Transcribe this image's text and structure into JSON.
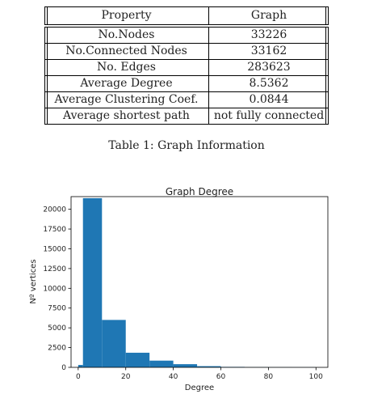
{
  "table": {
    "header": [
      "Property",
      "Graph"
    ],
    "rows": [
      [
        "No.Nodes",
        "33226"
      ],
      [
        "No.Connected Nodes",
        "33162"
      ],
      [
        "No. Edges",
        "283623"
      ],
      [
        "Average Degree",
        "8.5362"
      ],
      [
        "Average Clustering Coef.",
        "0.0844"
      ],
      [
        "Average shortest path",
        "not fully connected"
      ]
    ],
    "caption": "Table 1: Graph Information"
  },
  "chart_data": {
    "type": "bar",
    "title": "Graph Degree",
    "xlabel": "Degree",
    "ylabel": "Nº vertices",
    "xlim": [
      -3,
      105
    ],
    "ylim": [
      0,
      21600
    ],
    "xticks": [
      0,
      20,
      40,
      60,
      80,
      100
    ],
    "yticks": [
      0,
      2500,
      5000,
      7500,
      10000,
      12500,
      15000,
      17500,
      20000
    ],
    "color": "#1f77b4",
    "bins": [
      {
        "x0": 0,
        "x1": 2,
        "count": 300
      },
      {
        "x0": 2,
        "x1": 10,
        "count": 21400
      },
      {
        "x0": 10,
        "x1": 20,
        "count": 6000
      },
      {
        "x0": 20,
        "x1": 30,
        "count": 1850
      },
      {
        "x0": 30,
        "x1": 40,
        "count": 850
      },
      {
        "x0": 40,
        "x1": 50,
        "count": 400
      },
      {
        "x0": 50,
        "x1": 60,
        "count": 150
      },
      {
        "x0": 60,
        "x1": 70,
        "count": 60
      },
      {
        "x0": 70,
        "x1": 80,
        "count": 30
      },
      {
        "x0": 80,
        "x1": 90,
        "count": 20
      },
      {
        "x0": 90,
        "x1": 100,
        "count": 15
      }
    ]
  }
}
